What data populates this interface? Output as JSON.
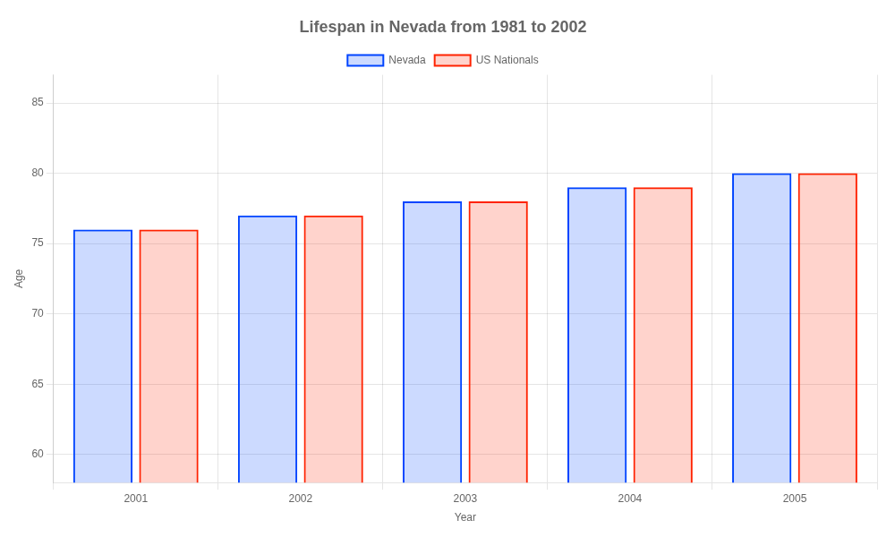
{
  "chart_data": {
    "type": "bar",
    "title": "Lifespan in Nevada from 1981 to 2002",
    "xlabel": "Year",
    "ylabel": "Age",
    "categories": [
      "2001",
      "2002",
      "2003",
      "2004",
      "2005"
    ],
    "series": [
      {
        "name": "Nevada",
        "color": "#0044ff",
        "values": [
          76,
          77,
          78,
          79,
          80
        ]
      },
      {
        "name": "US Nationals",
        "color": "#ff2200",
        "values": [
          76,
          77,
          78,
          79,
          80
        ]
      }
    ],
    "ylim": [
      58,
      87
    ],
    "yticks": [
      60,
      65,
      70,
      75,
      80,
      85
    ],
    "grid": true,
    "legend": "upper center"
  }
}
